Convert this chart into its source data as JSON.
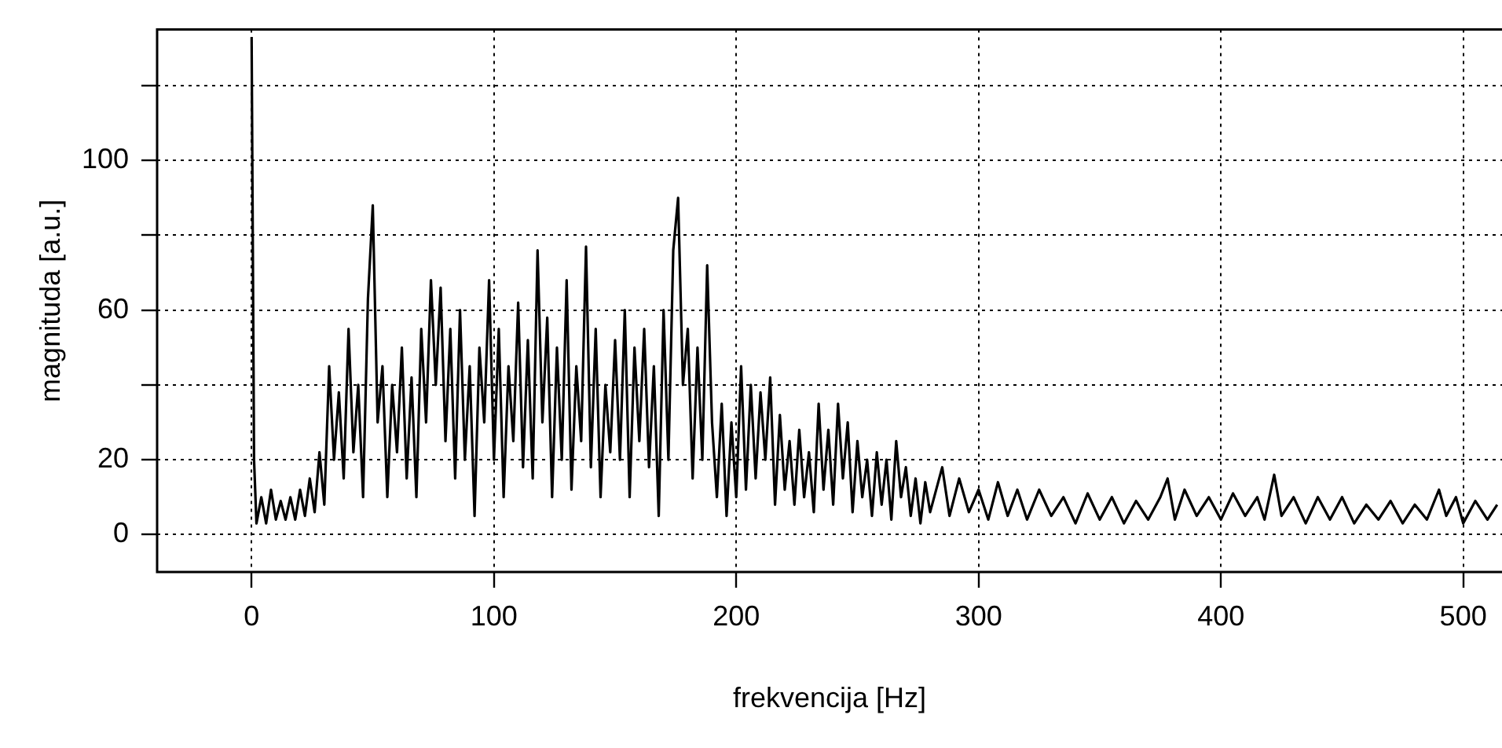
{
  "chart_data": {
    "type": "line",
    "xlabel": "frekvencija [Hz]",
    "ylabel": "magnituda [a.u.]",
    "xlim": [
      -39,
      516
    ],
    "xticks": [
      0,
      100,
      200,
      300,
      400,
      500
    ],
    "ylim": [
      -10,
      135
    ],
    "yticks": [
      0,
      20,
      {
        "value": 40,
        "label": null
      },
      60,
      {
        "value": 80,
        "label": null
      },
      100,
      {
        "value": 120,
        "label": null
      }
    ],
    "grid": true,
    "marker": "none",
    "line_style": "solid",
    "series": [
      {
        "color": "#000000",
        "x": [
          0,
          1,
          2,
          4,
          6,
          8,
          10,
          12,
          14,
          16,
          18,
          20,
          22,
          24,
          26,
          28,
          30,
          32,
          34,
          36,
          38,
          40,
          42,
          44,
          46,
          48,
          50,
          52,
          54,
          56,
          58,
          60,
          62,
          64,
          66,
          68,
          70,
          72,
          74,
          76,
          78,
          80,
          82,
          84,
          86,
          88,
          90,
          92,
          94,
          96,
          98,
          100,
          102,
          104,
          106,
          108,
          110,
          112,
          114,
          116,
          118,
          120,
          122,
          124,
          126,
          128,
          130,
          132,
          134,
          136,
          138,
          140,
          142,
          144,
          146,
          148,
          150,
          152,
          154,
          156,
          158,
          160,
          162,
          164,
          166,
          168,
          170,
          172,
          174,
          176,
          178,
          180,
          182,
          184,
          186,
          188,
          190,
          192,
          194,
          196,
          198,
          200,
          202,
          204,
          206,
          208,
          210,
          212,
          214,
          216,
          218,
          220,
          222,
          224,
          226,
          228,
          230,
          232,
          234,
          236,
          238,
          240,
          242,
          244,
          246,
          248,
          250,
          252,
          254,
          256,
          258,
          260,
          262,
          264,
          266,
          268,
          270,
          272,
          274,
          276,
          278,
          280,
          285,
          288,
          292,
          296,
          300,
          304,
          308,
          312,
          316,
          320,
          325,
          330,
          335,
          340,
          345,
          350,
          355,
          360,
          365,
          370,
          375,
          378,
          381,
          385,
          390,
          395,
          400,
          405,
          410,
          415,
          418,
          422,
          425,
          430,
          435,
          440,
          445,
          450,
          455,
          460,
          465,
          470,
          475,
          480,
          485,
          490,
          493,
          497,
          500,
          505,
          510,
          514
        ],
        "values": [
          133,
          20,
          3,
          10,
          3,
          12,
          4,
          9,
          4,
          10,
          4,
          12,
          5,
          15,
          6,
          22,
          8,
          45,
          20,
          38,
          15,
          55,
          22,
          40,
          10,
          63,
          88,
          30,
          45,
          10,
          40,
          22,
          50,
          15,
          42,
          10,
          55,
          30,
          68,
          40,
          66,
          25,
          55,
          15,
          60,
          20,
          45,
          5,
          50,
          30,
          68,
          20,
          55,
          10,
          45,
          25,
          62,
          18,
          52,
          15,
          76,
          30,
          58,
          10,
          50,
          20,
          68,
          12,
          45,
          25,
          77,
          18,
          55,
          10,
          40,
          22,
          52,
          20,
          60,
          10,
          50,
          25,
          55,
          18,
          45,
          5,
          60,
          20,
          76,
          90,
          40,
          55,
          15,
          50,
          20,
          72,
          30,
          10,
          35,
          5,
          30,
          10,
          45,
          12,
          40,
          15,
          38,
          20,
          42,
          8,
          32,
          12,
          25,
          8,
          28,
          10,
          22,
          6,
          35,
          12,
          28,
          8,
          35,
          15,
          30,
          6,
          25,
          10,
          20,
          5,
          22,
          8,
          20,
          4,
          25,
          10,
          18,
          5,
          15,
          3,
          14,
          6,
          18,
          5,
          15,
          6,
          12,
          4,
          14,
          5,
          12,
          4,
          12,
          5,
          10,
          3,
          11,
          4,
          10,
          3,
          9,
          4,
          10,
          15,
          4,
          12,
          5,
          10,
          4,
          11,
          5,
          10,
          4,
          16,
          5,
          10,
          3,
          10,
          4,
          10,
          3,
          8,
          4,
          9,
          3,
          8,
          4,
          12,
          5,
          10,
          3,
          9,
          4,
          8
        ]
      }
    ]
  }
}
